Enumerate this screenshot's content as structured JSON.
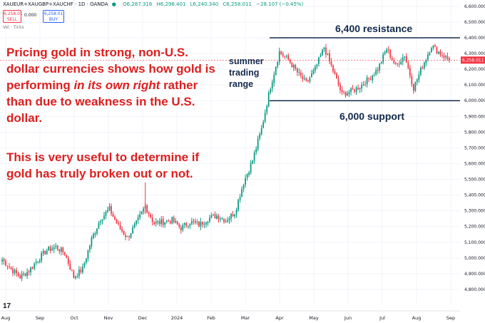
{
  "header": {
    "symbol": "XAUEUR+XAUGBP+XAUCHF · 1D · OANDA",
    "open": "O6,287.316",
    "high": "H6,296.401",
    "low": "L6,240.340",
    "close": "C6,258.011",
    "change": "−28.107 (−0.45%)",
    "sell_price": "6,258.01",
    "sell_label": "SELL",
    "spread": "0.000",
    "buy_price": "6,258.01",
    "buy_label": "BUY",
    "vol_label": "Vol · Ticks"
  },
  "annotations": {
    "main_note_a": "Pricing gold in strong, non-U.S. dollar currencies shows how gold is performing ",
    "main_note_em": "in its own right",
    "main_note_b": " rather than due to weakness in the U.S. dollar.",
    "second_note": "This is very useful to determine if gold has truly broken out or not.",
    "resistance_label": "6,400 resistance",
    "support_label": "6,000 support",
    "range_label_1": "summer",
    "range_label_2": "trading",
    "range_label_3": "range"
  },
  "colors": {
    "up": "#089981",
    "down": "#f23645",
    "note": "#dd1f1f",
    "level_line": "#13294b",
    "grid": "#f0f3fa",
    "axis_text": "#131722"
  },
  "chart_data": {
    "type": "candlestick",
    "ylim": [
      4700,
      6640
    ],
    "y_ticks": [
      4800,
      4900,
      5000,
      5100,
      5200,
      5300,
      5400,
      5500,
      5600,
      5700,
      5800,
      5900,
      6000,
      6100,
      6200,
      6300,
      6400,
      6500,
      6600
    ],
    "x_ticks": [
      "Aug",
      "Sep",
      "Oct",
      "Nov",
      "Dec",
      "2024",
      "Feb",
      "Mar",
      "Apr",
      "May",
      "Jun",
      "Jul",
      "Aug",
      "Sep"
    ],
    "levels": [
      {
        "name": "resistance",
        "value": 6400
      },
      {
        "name": "support",
        "value": 6000
      }
    ],
    "close_path": [
      [
        "Aug",
        4990
      ],
      [
        "Aug",
        4930
      ],
      [
        "Aug",
        4880
      ],
      [
        "Aug",
        4920
      ],
      [
        "Sep",
        4990
      ],
      [
        "Sep",
        5050
      ],
      [
        "Sep",
        5070
      ],
      [
        "Sep",
        5030
      ],
      [
        "Oct",
        4880
      ],
      [
        "Oct",
        4930
      ],
      [
        "Oct",
        5120
      ],
      [
        "Oct",
        5250
      ],
      [
        "Nov",
        5310
      ],
      [
        "Nov",
        5200
      ],
      [
        "Nov",
        5130
      ],
      [
        "Nov",
        5220
      ],
      [
        "Dec",
        5330
      ],
      [
        "Dec",
        5220
      ],
      [
        "Dec",
        5230
      ],
      [
        "Dec",
        5240
      ],
      [
        "2024",
        5190
      ],
      [
        "2024",
        5230
      ],
      [
        "2024",
        5210
      ],
      [
        "Feb",
        5250
      ],
      [
        "Feb",
        5270
      ],
      [
        "Feb",
        5240
      ],
      [
        "Mar",
        5290
      ],
      [
        "Mar",
        5480
      ],
      [
        "Mar",
        5620
      ],
      [
        "Mar",
        5820
      ],
      [
        "Apr",
        6090
      ],
      [
        "Apr",
        6310
      ],
      [
        "Apr",
        6260
      ],
      [
        "Apr",
        6180
      ],
      [
        "May",
        6110
      ],
      [
        "May",
        6200
      ],
      [
        "May",
        6340
      ],
      [
        "May",
        6190
      ],
      [
        "Jun",
        6040
      ],
      [
        "Jun",
        6060
      ],
      [
        "Jun",
        6090
      ],
      [
        "Jun",
        6140
      ],
      [
        "Jul",
        6200
      ],
      [
        "Jul",
        6330
      ],
      [
        "Jul",
        6220
      ],
      [
        "Jul",
        6290
      ],
      [
        "Aug",
        6080
      ],
      [
        "Aug",
        6220
      ],
      [
        "Aug",
        6350
      ],
      [
        "Aug",
        6300
      ],
      [
        "Aug",
        6258
      ]
    ],
    "last_price": "6,258.011"
  }
}
